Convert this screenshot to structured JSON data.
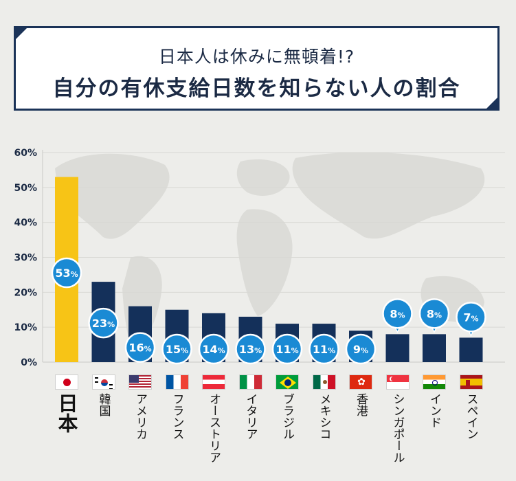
{
  "title": {
    "line1": "日本人は休みに無頓着!?",
    "line2": "自分の有休支給日数を知らない人の割合"
  },
  "colors": {
    "highlight_bar": "#f7c416",
    "bar": "#14305a",
    "bubble": "#1a8ad4",
    "title_border": "#1b3358"
  },
  "chart_data": {
    "type": "bar",
    "title": "自分の有休支給日数を知らない人の割合",
    "ylim": [
      0,
      60
    ],
    "y_ticks": [
      "0%",
      "10%",
      "20%",
      "30%",
      "40%",
      "50%",
      "60%"
    ],
    "grid": true,
    "categories": [
      "日本",
      "韓国",
      "アメリカ",
      "フランス",
      "オーストリア",
      "イタリア",
      "ブラジル",
      "メキシコ",
      "香港",
      "シンガポール",
      "インド",
      "スペイン"
    ],
    "values": [
      53,
      23,
      16,
      15,
      14,
      13,
      11,
      11,
      9,
      8,
      8,
      7
    ],
    "data_labels": [
      "53",
      "23",
      "16",
      "15",
      "14",
      "13",
      "11",
      "11",
      "9",
      "8",
      "8",
      "7"
    ],
    "data_label_unit": "%",
    "flags": [
      "japan-flag",
      "south-korea-flag",
      "usa-flag",
      "france-flag",
      "austria-flag",
      "italy-flag",
      "brazil-flag",
      "mexico-flag",
      "hong-kong-flag",
      "singapore-flag",
      "india-flag",
      "spain-flag"
    ]
  }
}
